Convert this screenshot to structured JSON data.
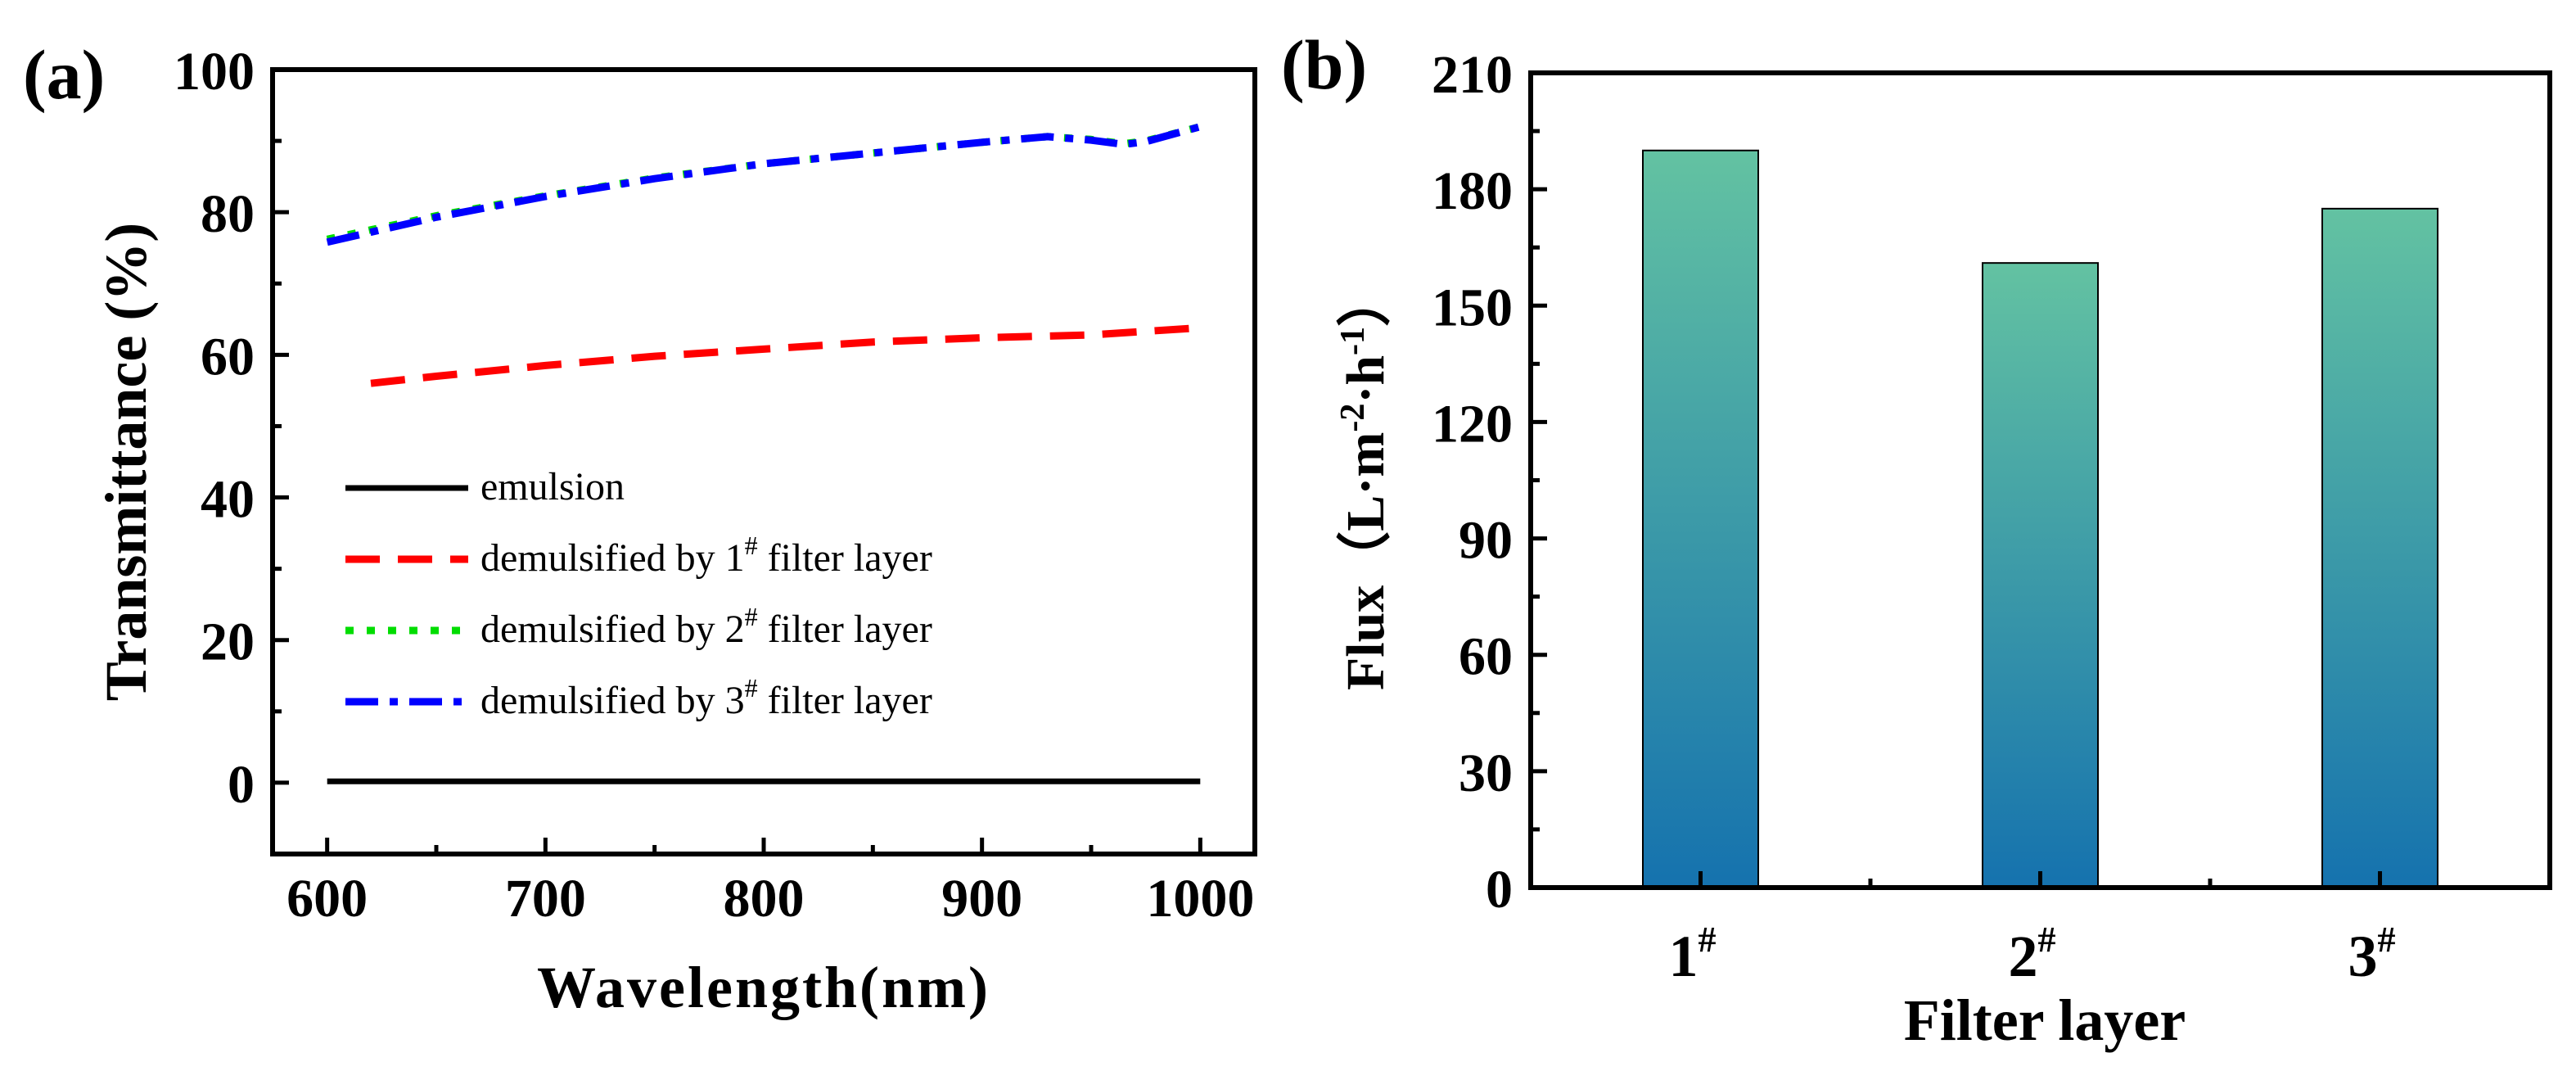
{
  "chart_data": [
    {
      "panel_label": "(a)",
      "type": "line",
      "title": "",
      "xlabel": "Wavelength(nm)",
      "ylabel": "Transmittance (%)",
      "xlim": [
        575,
        1025
      ],
      "ylim": [
        -10,
        100
      ],
      "xticks": [
        600,
        700,
        800,
        900,
        1000
      ],
      "yticks": [
        0,
        20,
        40,
        60,
        80,
        100
      ],
      "x_tick_labels": [
        "600",
        "700",
        "800",
        "900",
        "1000"
      ],
      "y_tick_labels": [
        "0",
        "20",
        "40",
        "60",
        "80",
        "100"
      ],
      "grid": false,
      "legend_position": "center-left",
      "series": [
        {
          "name": "emulsion",
          "legend_text": "emulsion",
          "legend_sup": "",
          "legend_suffix": "",
          "color": "#000000",
          "style": "solid",
          "x": [
            600,
            700,
            800,
            900,
            1000
          ],
          "y": [
            0.2,
            0.2,
            0.2,
            0.2,
            0.2
          ]
        },
        {
          "name": "demulsified by 1# filter layer",
          "legend_text": "demulsified by 1",
          "legend_sup": "#",
          "legend_suffix": " filter layer",
          "color": "#ff0000",
          "style": "dashed",
          "x": [
            620,
            650,
            700,
            750,
            800,
            850,
            900,
            950,
            1000
          ],
          "y": [
            56.0,
            57.0,
            58.5,
            59.8,
            60.8,
            61.8,
            62.4,
            62.8,
            63.8
          ]
        },
        {
          "name": "demulsified by 2# filter layer",
          "legend_text": "demulsified by 2",
          "legend_sup": "#",
          "legend_suffix": " filter layer",
          "color": "#00dd00",
          "style": "dotted",
          "x": [
            600,
            650,
            700,
            750,
            800,
            850,
            900,
            930,
            950,
            965,
            975,
            1000
          ],
          "y": [
            76.2,
            79.5,
            82.3,
            84.8,
            86.8,
            88.3,
            89.8,
            90.6,
            90.2,
            89.6,
            90.0,
            92.0
          ]
        },
        {
          "name": "demulsified by 3# filter layer",
          "legend_text": "demulsified by 3",
          "legend_sup": "#",
          "legend_suffix": " filter layer",
          "color": "#0000ff",
          "style": "dashdot",
          "x": [
            600,
            650,
            700,
            750,
            800,
            850,
            900,
            930,
            950,
            965,
            975,
            1000
          ],
          "y": [
            75.8,
            79.3,
            82.2,
            84.7,
            86.8,
            88.3,
            89.8,
            90.6,
            90.1,
            89.5,
            89.9,
            92.0
          ]
        }
      ]
    },
    {
      "panel_label": "(b)",
      "type": "bar",
      "title": "",
      "xlabel": "Filter layer",
      "ylabel": "Flux（L·m",
      "ylabel_sup1": "-2",
      "ylabel_mid": "·h",
      "ylabel_sup2": "-1",
      "ylabel_end": "）",
      "categories": [
        "1",
        "2",
        "3"
      ],
      "category_sup": "#",
      "values": [
        190,
        161,
        175
      ],
      "ylim": [
        0,
        210
      ],
      "yticks": [
        0,
        30,
        60,
        90,
        120,
        150,
        180,
        210
      ],
      "y_tick_labels": [
        "0",
        "30",
        "60",
        "90",
        "120",
        "150",
        "180",
        "210"
      ],
      "grid": false,
      "bar_gradient": {
        "top": "#63c2a2",
        "bottom": "#1572ae"
      }
    }
  ]
}
